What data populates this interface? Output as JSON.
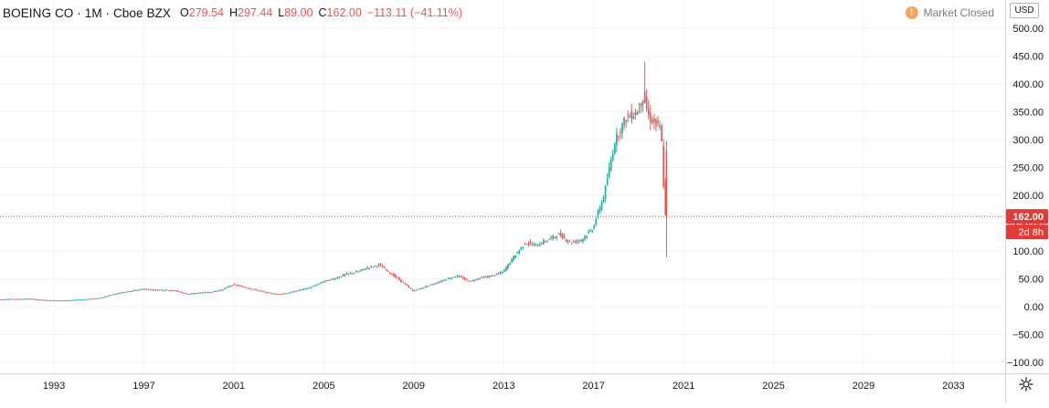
{
  "legend": {
    "symbol": "BOEING CO · 1M · Cboe BZX",
    "open_label": "O",
    "open": "279.54",
    "high_label": "H",
    "high": "297.44",
    "low_label": "L",
    "low": "89.00",
    "close_label": "C",
    "close": "162.00",
    "change": "−113.11 (−41.11%)"
  },
  "market_status": {
    "icon": "!",
    "label": "Market Closed"
  },
  "currency": "USD",
  "last_price": {
    "value": "162.00",
    "countdown": "2d 8h"
  },
  "colors": {
    "up": "#26a69a",
    "down": "#ef5350",
    "price_line": "#e53935",
    "grid": "#f0f3fa",
    "text": "#131722"
  },
  "settings_icon": "gear-icon",
  "chart_data": {
    "type": "candlestick",
    "title": "BOEING CO · 1M · Cboe BZX",
    "yticks": [
      "500.00",
      "450.00",
      "400.00",
      "350.00",
      "300.00",
      "250.00",
      "200.00",
      "150.00",
      "100.00",
      "50.00",
      "0.00",
      "−50.00",
      "−100.00"
    ],
    "ytick_values": [
      500,
      450,
      400,
      350,
      300,
      250,
      200,
      150,
      100,
      50,
      0,
      -50,
      -100
    ],
    "ylim": [
      -120,
      510
    ],
    "xticks": [
      "1993",
      "1997",
      "2001",
      "2005",
      "2009",
      "2013",
      "2017",
      "2021",
      "2025",
      "2029",
      "2033"
    ],
    "xtick_values": [
      1993,
      1997,
      2001,
      2005,
      2009,
      2013,
      2017,
      2021,
      2025,
      2029,
      2033
    ],
    "xlim": [
      1990.6,
      2035.3
    ],
    "grid": true,
    "price_line": 162,
    "series": [
      {
        "points": [
          [
            1990.5,
            12.5
          ],
          [
            1991,
            13.5
          ],
          [
            1991.5,
            13.5
          ],
          [
            1992,
            14
          ],
          [
            1992.5,
            12
          ],
          [
            1993,
            11
          ],
          [
            1993.5,
            11
          ],
          [
            1994,
            12
          ],
          [
            1994.5,
            13.5
          ],
          [
            1995,
            15
          ],
          [
            1995.5,
            20
          ],
          [
            1996,
            25
          ],
          [
            1996.5,
            28
          ],
          [
            1997,
            32
          ],
          [
            1997.5,
            30
          ],
          [
            1998,
            30
          ],
          [
            1998.5,
            28
          ],
          [
            1999,
            22
          ],
          [
            1999.5,
            25
          ],
          [
            2000,
            26
          ],
          [
            2000.5,
            30
          ],
          [
            2001,
            40
          ],
          [
            2001.5,
            35
          ],
          [
            2002,
            30
          ],
          [
            2002.5,
            25
          ],
          [
            2003,
            22
          ],
          [
            2003.5,
            25
          ],
          [
            2004,
            30
          ],
          [
            2004.5,
            35
          ],
          [
            2005,
            45
          ],
          [
            2005.5,
            50
          ],
          [
            2006,
            58
          ],
          [
            2006.5,
            62
          ],
          [
            2007,
            70
          ],
          [
            2007.5,
            75
          ],
          [
            2008,
            60
          ],
          [
            2008.5,
            45
          ],
          [
            2009,
            28
          ],
          [
            2009.5,
            35
          ],
          [
            2010,
            42
          ],
          [
            2010.5,
            50
          ],
          [
            2011,
            55
          ],
          [
            2011.5,
            45
          ],
          [
            2012,
            52
          ],
          [
            2012.5,
            55
          ],
          [
            2013,
            62
          ],
          [
            2013.5,
            90
          ],
          [
            2014,
            115
          ],
          [
            2014.5,
            110
          ],
          [
            2015,
            120
          ],
          [
            2015.5,
            130
          ],
          [
            2016,
            115
          ],
          [
            2016.5,
            120
          ],
          [
            2017,
            140
          ],
          [
            2017.5,
            200
          ],
          [
            2018,
            300
          ],
          [
            2018.5,
            340
          ],
          [
            2019,
            350
          ],
          [
            2019.25,
            380
          ],
          [
            2019.5,
            340
          ],
          [
            2019.75,
            330
          ],
          [
            2020,
            320
          ],
          [
            2020.1,
            280
          ],
          [
            2020.2,
            162
          ]
        ],
        "last_candle": {
          "x": 2020.2,
          "open": 279.54,
          "high": 297.44,
          "low": 89.0,
          "close": 162.0
        },
        "peak": {
          "x": 2019.2,
          "high": 440
        }
      }
    ]
  }
}
